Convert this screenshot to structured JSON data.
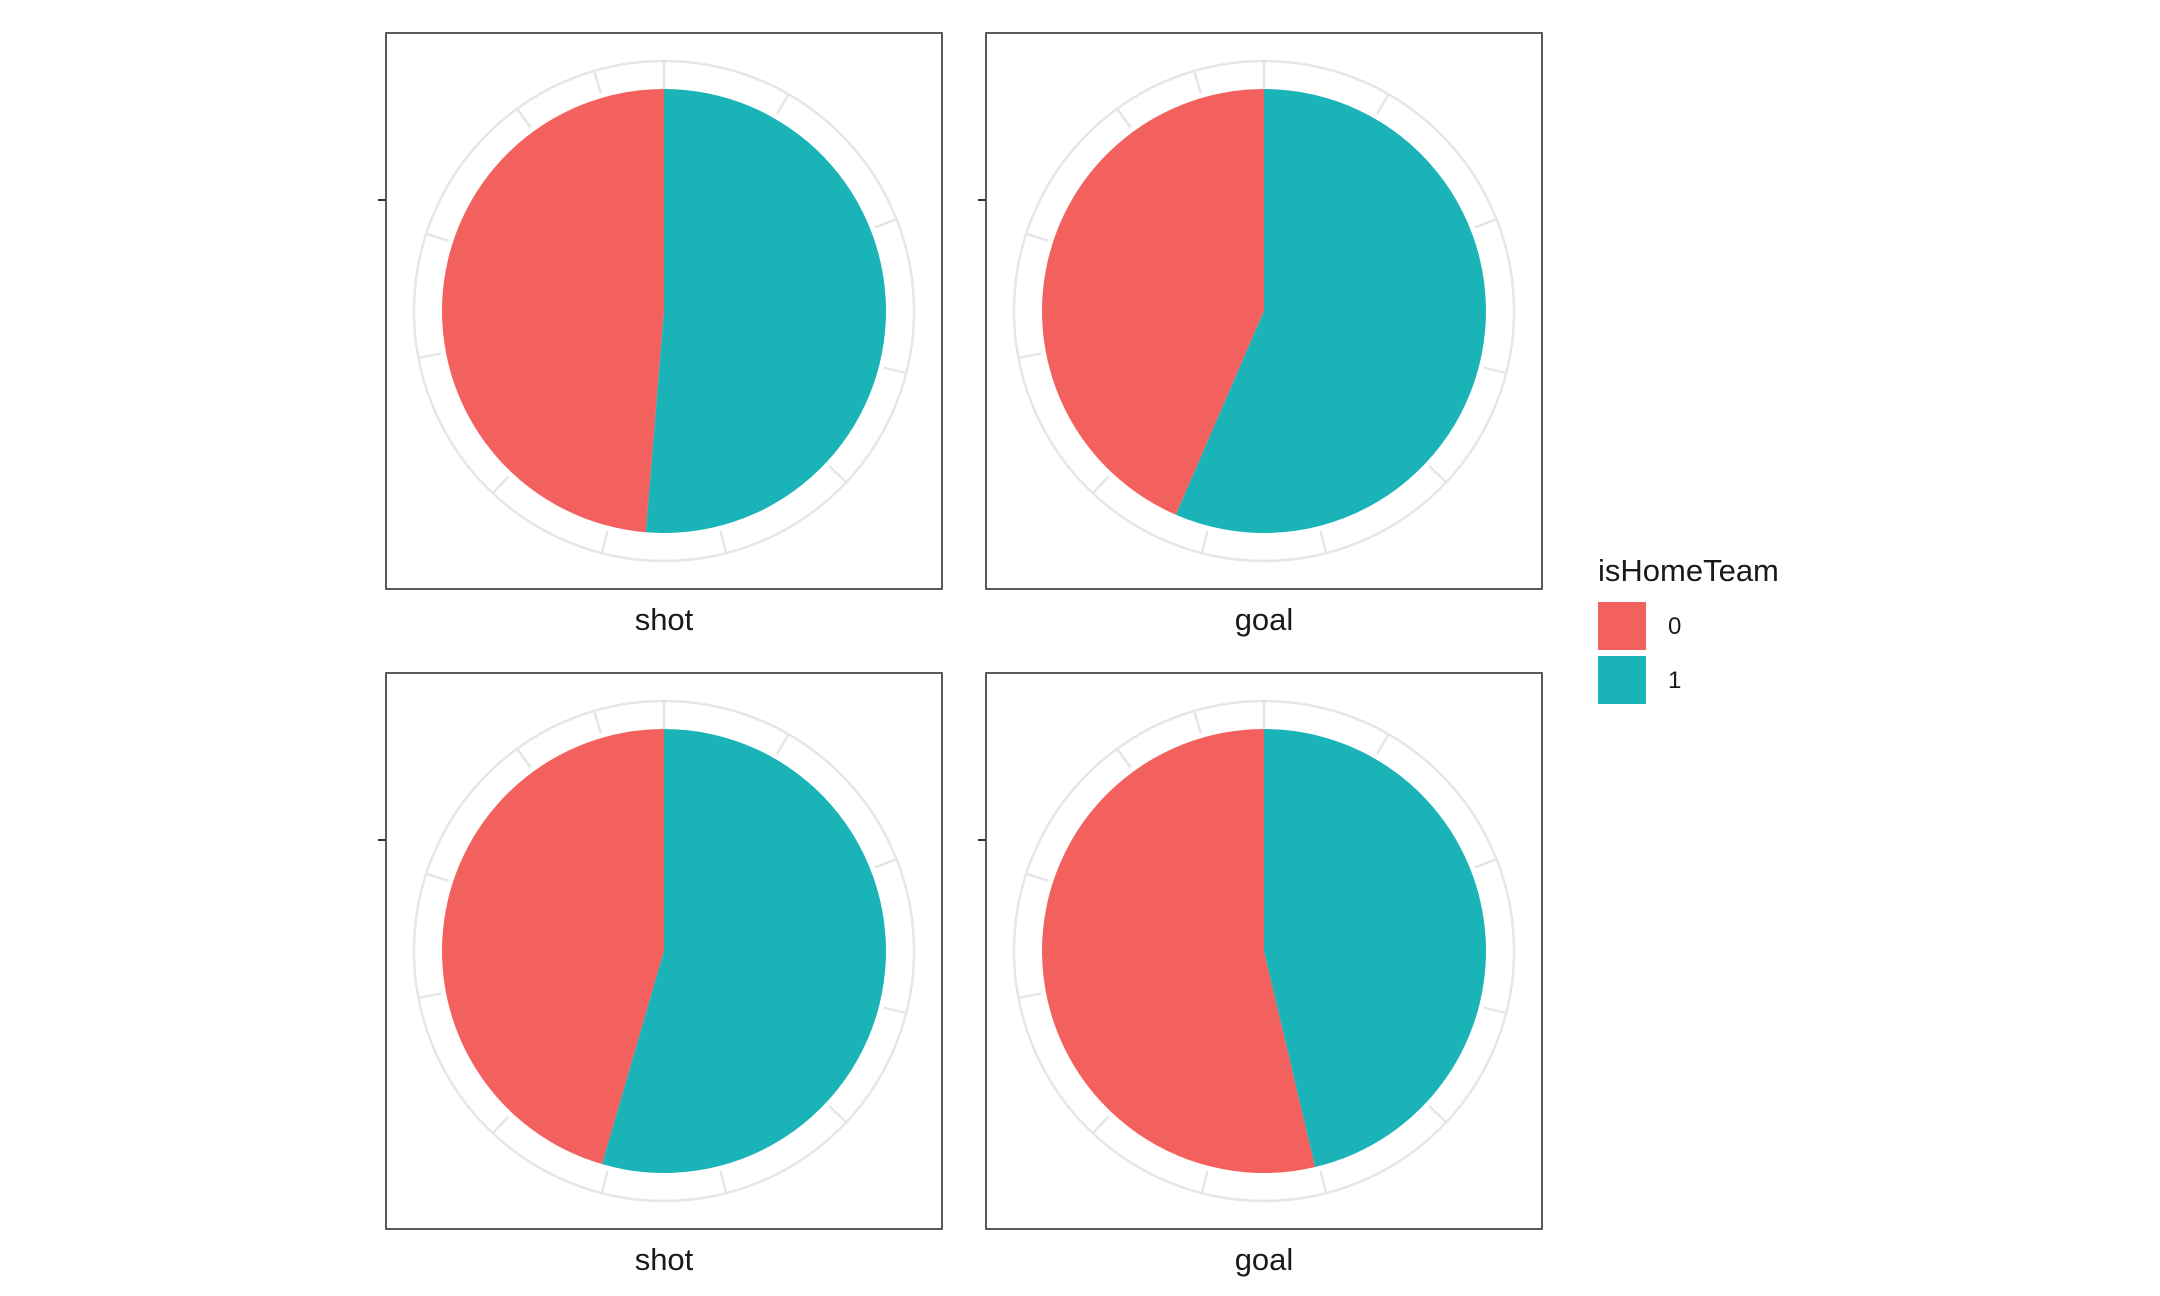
{
  "chart_data": [
    {
      "type": "pie",
      "panel_label": "shot",
      "categories": [
        "0",
        "1"
      ],
      "values": [
        0.487,
        0.513
      ],
      "start": "top",
      "direction": "clockwise-for-1"
    },
    {
      "type": "pie",
      "panel_label": "goal",
      "categories": [
        "0",
        "1"
      ],
      "values": [
        0.435,
        0.565
      ],
      "start": "top",
      "direction": "clockwise-for-1"
    },
    {
      "type": "pie",
      "panel_label": "shot",
      "categories": [
        "0",
        "1"
      ],
      "values": [
        0.455,
        0.545
      ],
      "start": "top",
      "direction": "clockwise-for-1"
    },
    {
      "type": "pie",
      "panel_label": "goal",
      "categories": [
        "0",
        "1"
      ],
      "values": [
        0.537,
        0.463
      ],
      "start": "top",
      "direction": "clockwise-for-1"
    }
  ],
  "legend": {
    "title": "isHomeTeam",
    "placement": "right",
    "items": [
      {
        "label": "0",
        "color": "#F2615E"
      },
      {
        "label": "1",
        "color": "#1AB3B8"
      }
    ]
  },
  "colors": {
    "0": "#F2615E",
    "1": "#1AB3B8",
    "grid": "#e6e6e6",
    "frame": "#333333"
  },
  "grid": true
}
